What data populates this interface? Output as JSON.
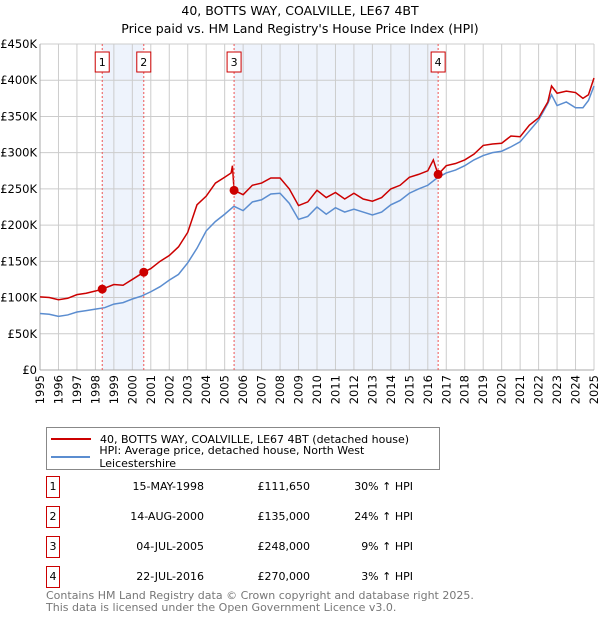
{
  "chart_data": {
    "type": "line",
    "title": "40, BOTTS WAY, COALVILLE, LE67 4BT",
    "subtitle": "Price paid vs. HM Land Registry's House Price Index (HPI)",
    "xlim": [
      1995,
      2025
    ],
    "ylim": [
      0,
      450000
    ],
    "yticks": [
      {
        "v": 0,
        "label": "£0"
      },
      {
        "v": 50000,
        "label": "£50K"
      },
      {
        "v": 100000,
        "label": "£100K"
      },
      {
        "v": 150000,
        "label": "£150K"
      },
      {
        "v": 200000,
        "label": "£200K"
      },
      {
        "v": 250000,
        "label": "£250K"
      },
      {
        "v": 300000,
        "label": "£300K"
      },
      {
        "v": 350000,
        "label": "£350K"
      },
      {
        "v": 400000,
        "label": "£400K"
      },
      {
        "v": 450000,
        "label": "£450K"
      }
    ],
    "xticks": [
      "1995",
      "1996",
      "1997",
      "1998",
      "1999",
      "2000",
      "2001",
      "2002",
      "2003",
      "2004",
      "2005",
      "2006",
      "2007",
      "2008",
      "2009",
      "2010",
      "2011",
      "2012",
      "2013",
      "2014",
      "2015",
      "2016",
      "2017",
      "2018",
      "2019",
      "2020",
      "2021",
      "2022",
      "2023",
      "2024",
      "2025"
    ],
    "grid": true,
    "series": [
      {
        "name": "40, BOTTS WAY, COALVILLE, LE67 4BT (detached house)",
        "color": "#cc0000",
        "x": [
          1995,
          1995.5,
          1996,
          1996.5,
          1997,
          1997.5,
          1998,
          1998.37,
          1999,
          1999.5,
          2000,
          2000.62,
          2001,
          2001.5,
          2002,
          2002.5,
          2003,
          2003.5,
          2004,
          2004.5,
          2005,
          2005.35,
          2005.42,
          2005.51,
          2006,
          2006.5,
          2007,
          2007.5,
          2008,
          2008.5,
          2009,
          2009.5,
          2010,
          2010.5,
          2011,
          2011.5,
          2012,
          2012.5,
          2013,
          2013.5,
          2014,
          2014.5,
          2015,
          2015.5,
          2016,
          2016.3,
          2016.4,
          2016.56,
          2017,
          2017.5,
          2018,
          2018.5,
          2019,
          2019.5,
          2020,
          2020.5,
          2021,
          2021.5,
          2022,
          2022.5,
          2022.7,
          2023,
          2023.5,
          2024,
          2024.4,
          2024.7,
          2025
        ],
        "y": [
          101000,
          100000,
          97000,
          99000,
          104000,
          106000,
          109000,
          111650,
          118000,
          117000,
          125000,
          135000,
          140000,
          150000,
          158000,
          170000,
          190000,
          228000,
          240000,
          258000,
          266000,
          272000,
          282000,
          248000,
          242000,
          255000,
          258000,
          265000,
          265000,
          250000,
          227000,
          232000,
          248000,
          238000,
          245000,
          236000,
          244000,
          236000,
          233000,
          238000,
          250000,
          255000,
          266000,
          270000,
          275000,
          290000,
          282000,
          270000,
          282000,
          285000,
          290000,
          298000,
          310000,
          312000,
          313000,
          323000,
          322000,
          338000,
          348000,
          370000,
          392000,
          382000,
          385000,
          383000,
          375000,
          380000,
          403000
        ]
      },
      {
        "name": "HPI: Average price, detached house, North West Leicestershire",
        "color": "#5b8dd0",
        "x": [
          1995,
          1995.5,
          1996,
          1996.5,
          1997,
          1997.5,
          1998,
          1998.5,
          1999,
          1999.5,
          2000,
          2000.5,
          2001,
          2001.5,
          2002,
          2002.5,
          2003,
          2003.5,
          2004,
          2004.5,
          2005,
          2005.5,
          2006,
          2006.5,
          2007,
          2007.5,
          2008,
          2008.5,
          2009,
          2009.5,
          2010,
          2010.5,
          2011,
          2011.5,
          2012,
          2012.5,
          2013,
          2013.5,
          2014,
          2014.5,
          2015,
          2015.5,
          2016,
          2016.5,
          2017,
          2017.5,
          2018,
          2018.5,
          2019,
          2019.5,
          2020,
          2020.5,
          2021,
          2021.5,
          2022,
          2022.5,
          2022.7,
          2023,
          2023.5,
          2024,
          2024.4,
          2024.7,
          2025
        ],
        "y": [
          78000,
          77000,
          74000,
          76000,
          80000,
          82000,
          84000,
          86000,
          91000,
          93000,
          98000,
          102000,
          108000,
          115000,
          124000,
          132000,
          148000,
          168000,
          192000,
          205000,
          215000,
          226000,
          220000,
          232000,
          235000,
          243000,
          244000,
          230000,
          208000,
          212000,
          225000,
          215000,
          224000,
          218000,
          222000,
          218000,
          214000,
          218000,
          228000,
          234000,
          244000,
          250000,
          255000,
          265000,
          272000,
          276000,
          282000,
          290000,
          296000,
          300000,
          302000,
          308000,
          315000,
          330000,
          345000,
          368000,
          380000,
          365000,
          370000,
          362000,
          362000,
          372000,
          392000
        ]
      }
    ],
    "sales": [
      {
        "n": "1",
        "x": 1998.37,
        "date": "15-MAY-1998",
        "price": 111650,
        "price_label": "£111,650",
        "hpi": "30% ↑ HPI"
      },
      {
        "n": "2",
        "x": 2000.62,
        "date": "14-AUG-2000",
        "price": 135000,
        "price_label": "£135,000",
        "hpi": "24% ↑ HPI"
      },
      {
        "n": "3",
        "x": 2005.51,
        "date": "04-JUL-2005",
        "price": 248000,
        "price_label": "£248,000",
        "hpi": "9% ↑ HPI"
      },
      {
        "n": "4",
        "x": 2016.56,
        "date": "22-JUL-2016",
        "price": 270000,
        "price_label": "£270,000",
        "hpi": "3% ↑ HPI"
      }
    ],
    "shaded": [
      [
        1998.37,
        2000.62
      ],
      [
        2005.51,
        2016.56
      ]
    ],
    "legend_position": "below"
  },
  "footer": {
    "line1": "Contains HM Land Registry data © Crown copyright and database right 2025.",
    "line2": "This data is licensed under the Open Government Licence v3.0."
  }
}
